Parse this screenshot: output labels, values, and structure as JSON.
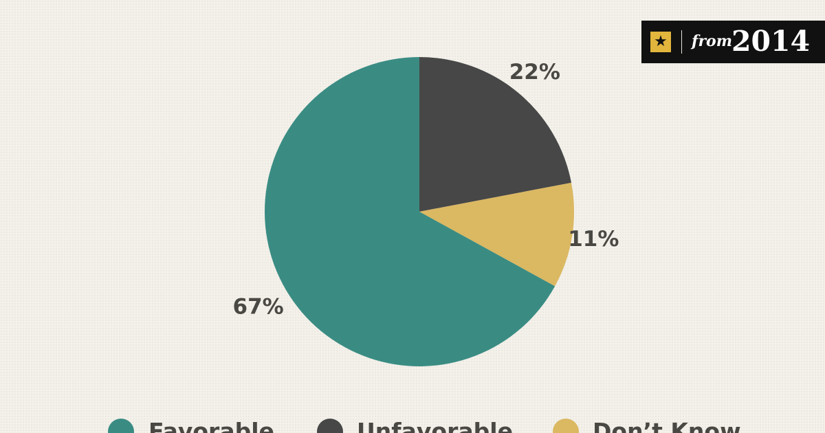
{
  "badge": {
    "icon": "star-icon",
    "prefix": "from",
    "year": "2014",
    "accent": "#e2b53c"
  },
  "chart_data": {
    "type": "pie",
    "title": "",
    "slices": [
      {
        "label": "Favorable",
        "value": 67,
        "display": "67%",
        "color": "#3a8c83"
      },
      {
        "label": "Unfavorable",
        "value": 22,
        "display": "22%",
        "color": "#474747"
      },
      {
        "label": "Don’t Know",
        "value": 11,
        "display": "11%",
        "color": "#dbb862"
      }
    ],
    "legend_position": "bottom"
  }
}
